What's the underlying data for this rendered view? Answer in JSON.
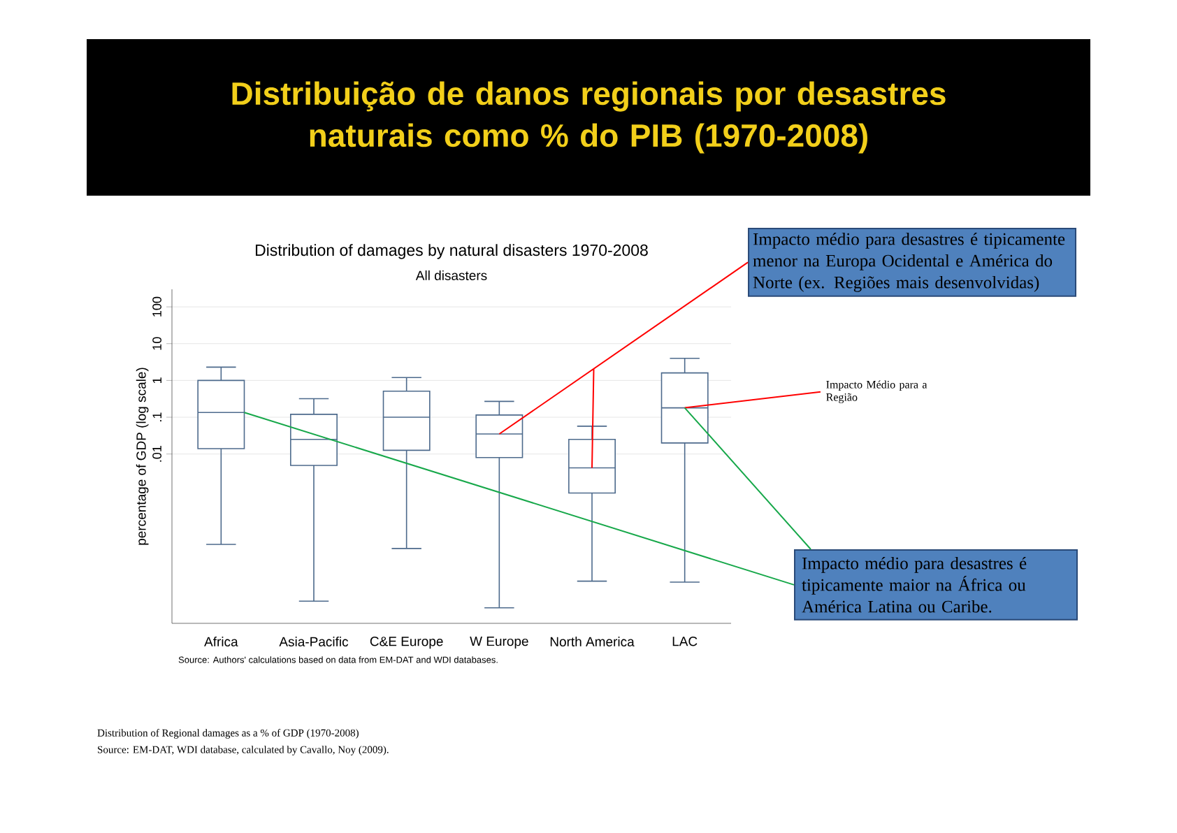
{
  "chart_data": {
    "type": "box",
    "title": "Distribuição de danos regionais por desastres naturais como % do PIB (1970-2008)",
    "subtitle": "Distribution of damages by natural disasters 1970-2008",
    "ylabel": "percentage of GDP (log scale)",
    "categories": [
      "Africa",
      "Asia-Pacific",
      "C&E Europe",
      "W Europe",
      "North America",
      "LAC"
    ],
    "boxes": [
      {
        "low": 3.5e-05,
        "q1": 0.014,
        "median": 0.135,
        "q3": 1.0,
        "high": 2.3
      },
      {
        "low": 1e-06,
        "q1": 0.0049,
        "median": 0.025,
        "q3": 0.12,
        "high": 0.32
      },
      {
        "low": 2.7e-05,
        "q1": 0.0126,
        "median": 0.1,
        "q3": 0.51,
        "high": 1.2
      },
      {
        "low": 6.6e-07,
        "q1": 0.008,
        "median": 0.035,
        "q3": 0.115,
        "high": 0.27
      },
      {
        "low": 3.5e-06,
        "q1": 0.00087,
        "median": 0.0042,
        "q3": 0.025,
        "high": 0.057
      },
      {
        "low": 3.3e-06,
        "q1": 0.02,
        "median": 0.18,
        "q3": 1.6,
        "high": 4.0
      }
    ],
    "color": "#4d6a8c",
    "log": "y",
    "ylim": [
      2.5e-07,
      300
    ],
    "yticks": [
      {
        "value": 0.01,
        "label": ".01"
      },
      {
        "value": 0.1,
        "label": ".1"
      },
      1,
      10,
      100
    ],
    "grid": "y",
    "annotations": [
      "All disasters",
      "Source: Authors' calculations based on data from EM-DAT and WDI databases.",
      {
        "text": "Impacto médio para desastres é tipicamente menor na Europa Ocidental e América do Norte  (ex. Regiões mais desenvolvidas)",
        "x": "W Europe",
        "y": 0.035
      },
      {
        "text": "Impacto Médio para  a Região",
        "x": "LAC",
        "y": 0.18
      },
      {
        "text": "Impacto médio para desastres é tipicamente maior na África ou América Latina ou Caribe.",
        "x": "LAC",
        "y": 0.18
      },
      "Distribution of Regional damages as a % of GDP (1970-2008)",
      "Source: EM-DAT, WDI database, calculated by Cavallo, Noy (2009)."
    ]
  }
}
